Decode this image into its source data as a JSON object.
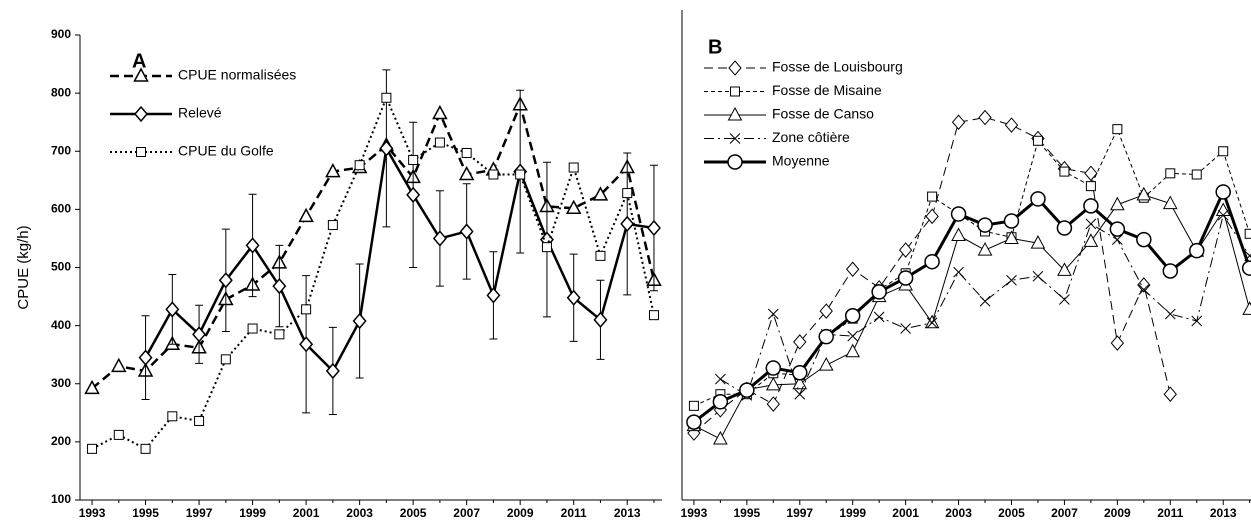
{
  "chart_data": [
    {
      "type": "line",
      "title": "A",
      "y_label": "CPUE (kg/h)",
      "x": [
        1993,
        1994,
        1995,
        1996,
        1997,
        1998,
        1999,
        2000,
        2001,
        2002,
        2003,
        2004,
        2005,
        2006,
        2007,
        2008,
        2009,
        2010,
        2011,
        2012,
        2013,
        2014
      ],
      "xlim": [
        1992.55,
        2014.3
      ],
      "xticks": [
        1993,
        1995,
        1997,
        1999,
        2001,
        2003,
        2005,
        2007,
        2009,
        2011,
        2013
      ],
      "ylim": [
        100,
        900
      ],
      "yticks": [
        100,
        200,
        300,
        400,
        500,
        600,
        700,
        800,
        900
      ],
      "legend": "upper left",
      "series": [
        {
          "name": "CPUE normalisées",
          "color": "#000000",
          "marker": "triangle",
          "dash": "dashed",
          "width": 2.5,
          "values": [
            292,
            330,
            322,
            368,
            362,
            445,
            470,
            508,
            588,
            665,
            672,
            710,
            655,
            765,
            660,
            668,
            780,
            605,
            602,
            625,
            672,
            478
          ]
        },
        {
          "name": "Relevé",
          "color": "#000000",
          "marker": "diamond",
          "dash": "solid",
          "width": 2.5,
          "values": [
            null,
            null,
            345,
            428,
            385,
            478,
            538,
            468,
            368,
            322,
            408,
            705,
            625,
            550,
            562,
            452,
            665,
            548,
            448,
            410,
            575,
            568
          ],
          "errors": [
            null,
            null,
            72,
            60,
            50,
            88,
            88,
            70,
            118,
            75,
            98,
            135,
            125,
            82,
            82,
            75,
            140,
            133,
            75,
            68,
            122,
            108
          ]
        },
        {
          "name": "CPUE du Golfe",
          "color": "#000000",
          "marker": "square",
          "dash": "dotted",
          "width": 2,
          "values": [
            188,
            212,
            188,
            244,
            236,
            342,
            395,
            385,
            428,
            573,
            676,
            792,
            685,
            715,
            697,
            660,
            660,
            535,
            672,
            520,
            628,
            418
          ]
        }
      ]
    },
    {
      "type": "line",
      "title": "B",
      "x": [
        1993,
        1994,
        1995,
        1996,
        1997,
        1998,
        1999,
        2000,
        2001,
        2002,
        2003,
        2004,
        2005,
        2006,
        2007,
        2008,
        2009,
        2010,
        2011,
        2012,
        2013,
        2014
      ],
      "xlim": [
        1992.55,
        2014.05
      ],
      "xticks": [
        1993,
        1995,
        1997,
        1999,
        2001,
        2003,
        2005,
        2007,
        2009,
        2011,
        2013
      ],
      "ylim": [
        100,
        900
      ],
      "legend": "upper left",
      "series": [
        {
          "name": "Fosse de Louisbourg",
          "color": "#000000",
          "marker": "diamond",
          "dash": "dashed",
          "width": 1,
          "values": [
            215,
            255,
            290,
            265,
            372,
            425,
            497,
            465,
            530,
            588,
            750,
            758,
            745,
            722,
            670,
            662,
            370,
            470,
            282,
            null,
            null,
            null
          ]
        },
        {
          "name": "Fosse de Misaine",
          "color": "#000000",
          "marker": "square",
          "dash": "short",
          "width": 1,
          "values": [
            262,
            282,
            282,
            318,
            315,
            380,
            412,
            462,
            490,
            622,
            592,
            562,
            552,
            718,
            665,
            640,
            738,
            620,
            662,
            660,
            700,
            558
          ]
        },
        {
          "name": "Fosse de Canso",
          "color": "#000000",
          "marker": "triangle",
          "dash": "solid",
          "width": 1,
          "values": [
            228,
            205,
            290,
            298,
            300,
            332,
            355,
            450,
            470,
            405,
            555,
            530,
            550,
            542,
            495,
            545,
            608,
            625,
            610,
            528,
            598,
            428
          ]
        },
        {
          "name": "Zone côtière",
          "color": "#000000",
          "marker": "x",
          "dash": "dashdot",
          "width": 1,
          "values": [
            null,
            308,
            280,
            420,
            282,
            385,
            382,
            415,
            395,
            405,
            492,
            442,
            478,
            485,
            445,
            575,
            548,
            462,
            420,
            408,
            590,
            520
          ]
        },
        {
          "name": "Moyenne",
          "color": "#000000",
          "marker": "circle",
          "dash": "solid",
          "width": 3,
          "values": [
            234,
            269,
            289,
            327,
            319,
            381,
            417,
            458,
            482,
            510,
            592,
            573,
            580,
            618,
            568,
            606,
            566,
            548,
            494,
            529,
            630,
            499
          ]
        }
      ]
    }
  ]
}
